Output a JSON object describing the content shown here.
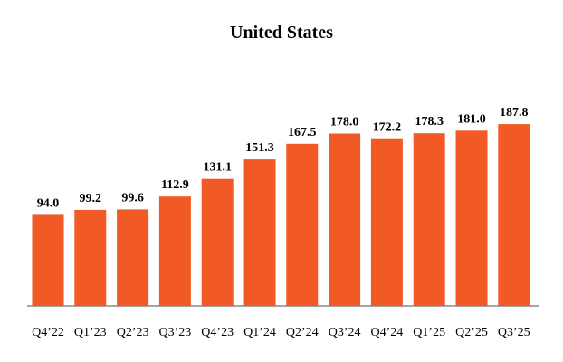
{
  "chart_data": {
    "type": "bar",
    "title": "United States",
    "xlabel": "",
    "ylabel": "",
    "categories": [
      "Q4’22",
      "Q1’23",
      "Q2’23",
      "Q3’23",
      "Q4’23",
      "Q1’24",
      "Q2’24",
      "Q3’24",
      "Q4’24",
      "Q1’25",
      "Q2’25",
      "Q3’25"
    ],
    "values": [
      94.0,
      99.2,
      99.6,
      112.9,
      131.1,
      151.3,
      167.5,
      178.0,
      172.2,
      178.3,
      181.0,
      187.8
    ],
    "value_labels": [
      "94.0",
      "99.2",
      "99.6",
      "112.9",
      "131.1",
      "151.3",
      "167.5",
      "178.0",
      "172.2",
      "178.3",
      "181.0",
      "187.8"
    ],
    "ylim": [
      0,
      200
    ],
    "grid": false,
    "legend": "none",
    "colors": {
      "bar": "#F15A24",
      "axis": "#A6A6A6",
      "text": "#000000"
    }
  }
}
